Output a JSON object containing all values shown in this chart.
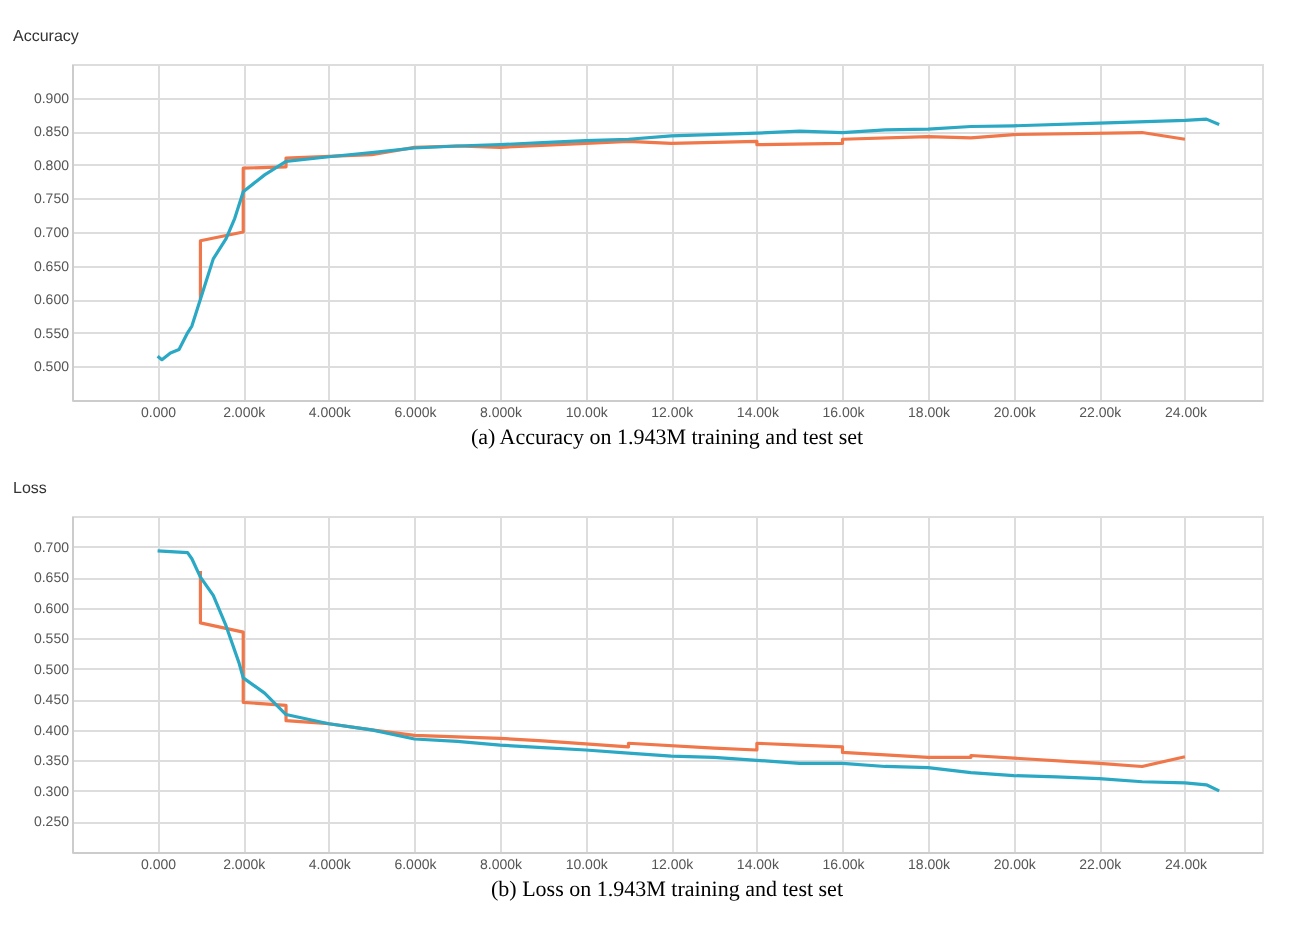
{
  "chart_data": [
    {
      "type": "line",
      "ylabel": "Accuracy",
      "annotations": [
        "(a) Accuracy on 1.943M training and test set"
      ],
      "grid": true,
      "xlim": [
        -2000,
        25800
      ],
      "ylim": [
        0.45,
        0.95
      ],
      "xticks": [
        {
          "value": 0,
          "label": "0.000"
        },
        {
          "value": 2000,
          "label": "2.000k"
        },
        {
          "value": 4000,
          "label": "4.000k"
        },
        {
          "value": 6000,
          "label": "6.000k"
        },
        {
          "value": 8000,
          "label": "8.000k"
        },
        {
          "value": 10000,
          "label": "10.00k"
        },
        {
          "value": 12000,
          "label": "12.00k"
        },
        {
          "value": 14000,
          "label": "14.00k"
        },
        {
          "value": 16000,
          "label": "16.00k"
        },
        {
          "value": 18000,
          "label": "18.00k"
        },
        {
          "value": 20000,
          "label": "20.00k"
        },
        {
          "value": 22000,
          "label": "22.00k"
        },
        {
          "value": 24000,
          "label": "24.00k"
        }
      ],
      "yticks": [
        {
          "value": 0.5,
          "label": "0.500"
        },
        {
          "value": 0.55,
          "label": "0.550"
        },
        {
          "value": 0.6,
          "label": "0.600"
        },
        {
          "value": 0.65,
          "label": "0.650"
        },
        {
          "value": 0.7,
          "label": "0.700"
        },
        {
          "value": 0.75,
          "label": "0.750"
        },
        {
          "value": 0.8,
          "label": "0.800"
        },
        {
          "value": 0.85,
          "label": "0.850"
        },
        {
          "value": 0.9,
          "label": "0.900"
        }
      ],
      "series": [
        {
          "color": "#f0774a",
          "x": [
            1000,
            1000,
            2000,
            2000,
            3000,
            3000,
            5000,
            6000,
            7000,
            8000,
            10000,
            11000,
            12000,
            14000,
            14000,
            16000,
            16000,
            18000,
            19000,
            20000,
            23000,
            24000
          ],
          "values": [
            0.6,
            0.687,
            0.7,
            0.795,
            0.797,
            0.81,
            0.815,
            0.826,
            0.828,
            0.826,
            0.832,
            0.835,
            0.832,
            0.835,
            0.83,
            0.832,
            0.838,
            0.842,
            0.84,
            0.845,
            0.848,
            0.838
          ]
        },
        {
          "color": "#2aa8c4",
          "x": [
            0,
            100,
            300,
            500,
            700,
            800,
            1000,
            1300,
            1600,
            1800,
            2000,
            2500,
            3000,
            4000,
            5000,
            6000,
            7000,
            8000,
            9000,
            10000,
            11000,
            12000,
            14000,
            15000,
            16000,
            17000,
            18000,
            19000,
            20000,
            22000,
            24000,
            24500,
            24800
          ],
          "values": [
            0.515,
            0.51,
            0.52,
            0.525,
            0.55,
            0.56,
            0.6,
            0.66,
            0.69,
            0.72,
            0.76,
            0.785,
            0.805,
            0.812,
            0.818,
            0.825,
            0.828,
            0.83,
            0.833,
            0.836,
            0.838,
            0.843,
            0.847,
            0.85,
            0.848,
            0.852,
            0.853,
            0.857,
            0.858,
            0.862,
            0.866,
            0.868,
            0.86
          ]
        }
      ]
    },
    {
      "type": "line",
      "ylabel": "Loss",
      "annotations": [
        "(b) Loss on 1.943M training and test set"
      ],
      "grid": true,
      "xlim": [
        -2000,
        25800
      ],
      "ylim": [
        0.2,
        0.75
      ],
      "xticks": [
        {
          "value": 0,
          "label": "0.000"
        },
        {
          "value": 2000,
          "label": "2.000k"
        },
        {
          "value": 4000,
          "label": "4.000k"
        },
        {
          "value": 6000,
          "label": "6.000k"
        },
        {
          "value": 8000,
          "label": "8.000k"
        },
        {
          "value": 10000,
          "label": "10.00k"
        },
        {
          "value": 12000,
          "label": "12.00k"
        },
        {
          "value": 14000,
          "label": "14.00k"
        },
        {
          "value": 16000,
          "label": "16.00k"
        },
        {
          "value": 18000,
          "label": "18.00k"
        },
        {
          "value": 20000,
          "label": "20.00k"
        },
        {
          "value": 22000,
          "label": "22.00k"
        },
        {
          "value": 24000,
          "label": "24.00k"
        }
      ],
      "yticks": [
        {
          "value": 0.25,
          "label": "0.250"
        },
        {
          "value": 0.3,
          "label": "0.300"
        },
        {
          "value": 0.35,
          "label": "0.350"
        },
        {
          "value": 0.4,
          "label": "0.400"
        },
        {
          "value": 0.45,
          "label": "0.450"
        },
        {
          "value": 0.5,
          "label": "0.500"
        },
        {
          "value": 0.55,
          "label": "0.550"
        },
        {
          "value": 0.6,
          "label": "0.600"
        },
        {
          "value": 0.65,
          "label": "0.650"
        },
        {
          "value": 0.7,
          "label": "0.700"
        }
      ],
      "series": [
        {
          "color": "#f0774a",
          "x": [
            1000,
            1000,
            2000,
            2000,
            3000,
            3000,
            4000,
            5000,
            6000,
            8000,
            9000,
            11000,
            11000,
            13000,
            14000,
            14000,
            15000,
            16000,
            16000,
            18000,
            19000,
            19000,
            22000,
            23000,
            24000
          ],
          "values": [
            0.66,
            0.575,
            0.56,
            0.445,
            0.44,
            0.415,
            0.41,
            0.4,
            0.391,
            0.386,
            0.382,
            0.372,
            0.378,
            0.37,
            0.367,
            0.378,
            0.375,
            0.372,
            0.363,
            0.355,
            0.355,
            0.358,
            0.345,
            0.34,
            0.356
          ]
        },
        {
          "color": "#2aa8c4",
          "x": [
            0,
            700,
            800,
            1000,
            1300,
            1600,
            1900,
            2000,
            2500,
            3000,
            4000,
            5000,
            6000,
            7000,
            8000,
            9000,
            10000,
            11000,
            12000,
            13000,
            14000,
            15000,
            16000,
            17000,
            18000,
            19000,
            20000,
            21000,
            22000,
            23000,
            24000,
            24500,
            24800
          ],
          "values": [
            0.693,
            0.69,
            0.68,
            0.65,
            0.62,
            0.57,
            0.51,
            0.485,
            0.46,
            0.425,
            0.41,
            0.4,
            0.385,
            0.381,
            0.375,
            0.371,
            0.367,
            0.362,
            0.357,
            0.355,
            0.35,
            0.345,
            0.345,
            0.34,
            0.338,
            0.33,
            0.325,
            0.323,
            0.32,
            0.315,
            0.313,
            0.31,
            0.3
          ]
        }
      ]
    }
  ]
}
